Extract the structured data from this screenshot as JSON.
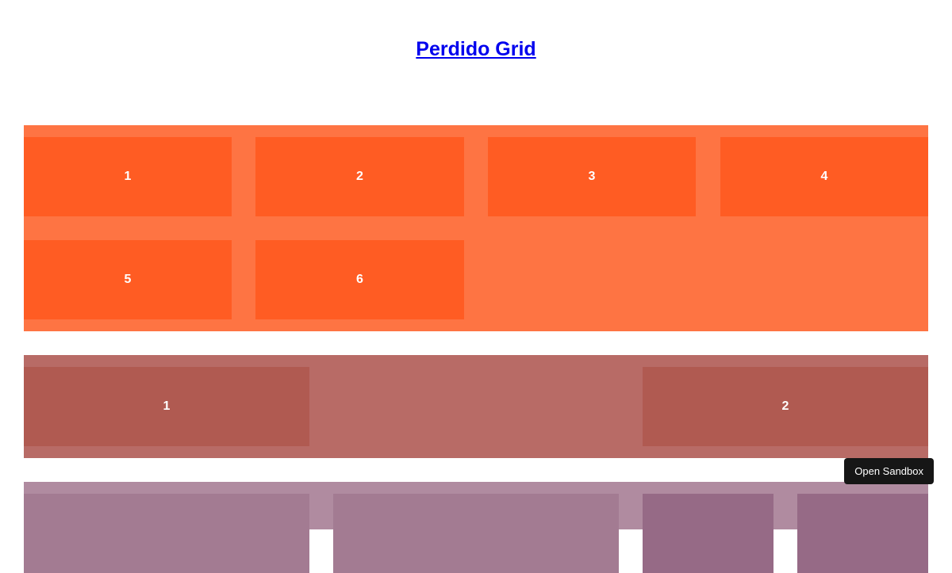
{
  "title": "Perdido Grid",
  "section1": {
    "items": [
      "1",
      "2",
      "3",
      "4",
      "5",
      "6"
    ]
  },
  "section2": {
    "items": [
      "1",
      "2"
    ]
  },
  "section3": {
    "items": [
      "",
      "",
      "",
      ""
    ]
  },
  "open_sandbox": "Open Sandbox",
  "colors": {
    "section1_bg": "#fe7443",
    "section1_item": "#ff5c23",
    "section2_bg": "#b86b66",
    "section2_item": "#b05a51",
    "section3_bg": "#b08ba0",
    "section3_item": "#a37b92"
  }
}
